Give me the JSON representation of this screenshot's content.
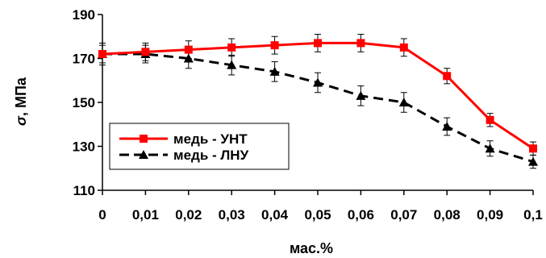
{
  "chart_data": {
    "type": "line",
    "title": "",
    "xlabel": "мас.%",
    "ylabel_symbol": "σ",
    "ylabel_unit": ", МПа",
    "x": [
      0,
      0.01,
      0.02,
      0.03,
      0.04,
      0.05,
      0.06,
      0.07,
      0.08,
      0.09,
      0.1
    ],
    "x_tick_labels": [
      "0",
      "0,01",
      "0,02",
      "0,03",
      "0,04",
      "0,05",
      "0,06",
      "0,07",
      "0,08",
      "0,09",
      "0,1"
    ],
    "ylim": [
      110,
      190
    ],
    "y_ticks": [
      110,
      130,
      150,
      170,
      190
    ],
    "grid": false,
    "legend_position": "lower-left",
    "series": [
      {
        "name": "медь - УНТ",
        "color": "#ff0000",
        "line": "solid",
        "marker": "square",
        "values": [
          172,
          173,
          174,
          175,
          176,
          177,
          177,
          175,
          162,
          142,
          129
        ],
        "error": [
          4,
          4,
          4,
          4,
          4,
          4,
          4,
          4,
          3.5,
          3,
          3
        ]
      },
      {
        "name": "медь - ЛНУ",
        "color": "#000000",
        "line": "dashed",
        "marker": "triangle",
        "values": [
          172,
          172,
          170,
          167,
          164,
          159,
          153,
          150,
          139,
          129,
          123
        ],
        "error": [
          5,
          4,
          4.5,
          4.5,
          4.5,
          4.5,
          4.5,
          4.5,
          4,
          3.5,
          3
        ]
      }
    ]
  }
}
